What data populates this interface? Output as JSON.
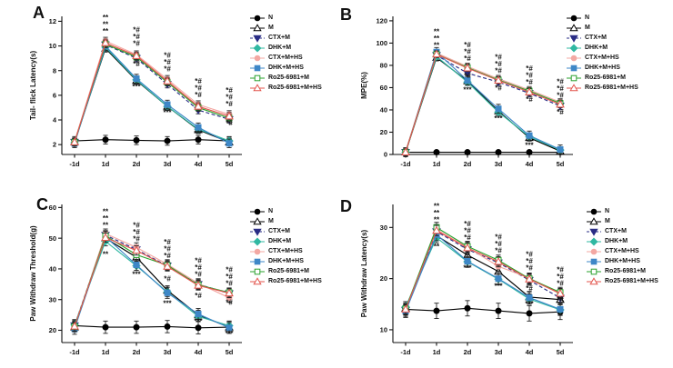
{
  "figure_background": "#ffffff",
  "legend": {
    "items": [
      {
        "label": "N",
        "marker": "circle",
        "color": "#000000",
        "open": false,
        "dash": "solid"
      },
      {
        "label": "M",
        "marker": "triangle-up",
        "color": "#000000",
        "open": true,
        "dash": "solid"
      },
      {
        "label": "CTX+M",
        "marker": "triangle-down",
        "color": "#2a2d85",
        "open": false,
        "dash": "dashed"
      },
      {
        "label": "DHK+M",
        "marker": "diamond",
        "color": "#30b8a2",
        "open": false,
        "dash": "solid"
      },
      {
        "label": "CTX+M+HS",
        "marker": "circle",
        "color": "#f3a8a3",
        "open": false,
        "dash": "solid"
      },
      {
        "label": "DHK+M+HS",
        "marker": "square",
        "color": "#3e87c7",
        "open": false,
        "dash": "solid"
      },
      {
        "label": "Ro25-6981+M",
        "marker": "square",
        "color": "#2aa12e",
        "open": true,
        "dash": "solid"
      },
      {
        "label": "Ro25-6981+M+HS",
        "marker": "triangle-up",
        "color": "#e3564e",
        "open": true,
        "dash": "solid"
      }
    ]
  },
  "chart_data": [
    {
      "label": "A",
      "type": "line",
      "ylabel": "Tail- flick Latency(s)",
      "x_labels": [
        "-1d",
        "1d",
        "2d",
        "3d",
        "4d",
        "5d"
      ],
      "ylim": [
        1.2,
        12.4
      ],
      "yticks": [
        2,
        4,
        6,
        8,
        10,
        12
      ],
      "series": [
        {
          "name": "N",
          "values": [
            2.3,
            2.4,
            2.35,
            2.3,
            2.4,
            2.3
          ],
          "err": 0.35
        },
        {
          "name": "M",
          "values": [
            2.2,
            9.8,
            7.2,
            5.1,
            3.2,
            2.2
          ],
          "err": 0.3
        },
        {
          "name": "CTX+M",
          "values": [
            2.2,
            10.1,
            9.0,
            6.9,
            4.8,
            4.05
          ],
          "err": 0.3
        },
        {
          "name": "DHK+M",
          "values": [
            2.15,
            9.9,
            7.25,
            5.1,
            3.25,
            2.3
          ],
          "err": 0.3
        },
        {
          "name": "CTX+M+HS",
          "values": [
            2.25,
            10.4,
            9.3,
            7.3,
            5.25,
            4.45
          ],
          "err": 0.3
        },
        {
          "name": "DHK+M+HS",
          "values": [
            2.1,
            10.0,
            7.35,
            5.25,
            3.4,
            2.1
          ],
          "err": 0.35
        },
        {
          "name": "Ro25-6981+M",
          "values": [
            2.2,
            10.15,
            9.1,
            7.05,
            5.0,
            4.15
          ],
          "err": 0.3
        },
        {
          "name": "Ro25-6981+M+HS",
          "values": [
            2.2,
            10.25,
            9.2,
            7.15,
            5.1,
            4.3
          ],
          "err": 0.3
        }
      ],
      "annotations": [
        {
          "xi": 1,
          "y": 11.0,
          "lines": [
            "**",
            "**",
            "**"
          ]
        },
        {
          "xi": 2,
          "y": 10.0,
          "lines": [
            "*#",
            "*#",
            "*#"
          ]
        },
        {
          "xi": 2,
          "y": 8.35,
          "lines": [
            "*#"
          ]
        },
        {
          "xi": 2,
          "y": 6.5,
          "lines": [
            "***"
          ]
        },
        {
          "xi": 3,
          "y": 7.95,
          "lines": [
            "*#",
            "*#",
            "*#"
          ]
        },
        {
          "xi": 3,
          "y": 4.4,
          "lines": [
            "***"
          ]
        },
        {
          "xi": 4,
          "y": 5.85,
          "lines": [
            "*#",
            "*#",
            "*#"
          ]
        },
        {
          "xi": 4,
          "y": 2.7,
          "lines": [
            "***"
          ]
        },
        {
          "xi": 5,
          "y": 5.1,
          "lines": [
            "*#",
            "*#",
            "*#"
          ]
        },
        {
          "xi": 5,
          "y": 3.55,
          "lines": [
            "*#"
          ]
        }
      ]
    },
    {
      "label": "B",
      "type": "line",
      "ylabel": "MPE(%)",
      "x_labels": [
        "-1d",
        "1d",
        "2d",
        "3d",
        "4d",
        "5d"
      ],
      "ylim": [
        0,
        124
      ],
      "yticks": [
        0,
        20,
        40,
        60,
        80,
        100,
        120
      ],
      "series": [
        {
          "name": "N",
          "values": [
            2,
            2,
            2,
            2,
            2,
            2
          ],
          "err": 1.5
        },
        {
          "name": "M",
          "values": [
            2,
            87,
            66,
            39,
            15,
            3
          ],
          "err": 3
        },
        {
          "name": "CTX+M",
          "values": [
            2,
            89,
            73,
            65,
            55,
            43.5
          ],
          "err": 3
        },
        {
          "name": "DHK+M",
          "values": [
            2,
            88,
            65,
            38,
            16,
            4
          ],
          "err": 3
        },
        {
          "name": "CTX+M+HS",
          "values": [
            3,
            91,
            79,
            68,
            58,
            47
          ],
          "err": 3
        },
        {
          "name": "DHK+M+HS",
          "values": [
            2,
            92,
            66.5,
            41,
            17,
            4.5
          ],
          "err": 4
        },
        {
          "name": "Ro25-6981+M",
          "values": [
            2,
            90,
            78,
            67,
            57,
            46
          ],
          "err": 3
        },
        {
          "name": "Ro25-6981+M+HS",
          "values": [
            2,
            90,
            77.5,
            66.5,
            56,
            45
          ],
          "err": 3
        }
      ],
      "annotations": [
        {
          "xi": 1,
          "y": 96,
          "lines": [
            "**",
            "**",
            "**"
          ]
        },
        {
          "xi": 2,
          "y": 84,
          "lines": [
            "*#",
            "*#",
            "*#"
          ]
        },
        {
          "xi": 2,
          "y": 68.5,
          "lines": [
            "*#"
          ]
        },
        {
          "xi": 2,
          "y": 56,
          "lines": [
            "***"
          ]
        },
        {
          "xi": 3,
          "y": 73,
          "lines": [
            "*#",
            "*#",
            "*#"
          ]
        },
        {
          "xi": 3,
          "y": 57.5,
          "lines": [
            "*#"
          ]
        },
        {
          "xi": 3,
          "y": 30,
          "lines": [
            "***"
          ]
        },
        {
          "xi": 4,
          "y": 63,
          "lines": [
            "*#",
            "*#",
            "*#"
          ]
        },
        {
          "xi": 4,
          "y": 47.5,
          "lines": [
            "*#"
          ]
        },
        {
          "xi": 4,
          "y": 6,
          "lines": [
            "***"
          ]
        },
        {
          "xi": 5,
          "y": 51,
          "lines": [
            "*#",
            "*#",
            "*#"
          ]
        },
        {
          "xi": 5,
          "y": 36,
          "lines": [
            "*#"
          ]
        }
      ]
    },
    {
      "label": "C",
      "type": "line",
      "ylabel": "Paw Withdraw Threshold(g)",
      "x_labels": [
        "-1d",
        "1d",
        "2d",
        "3d",
        "4d",
        "5d"
      ],
      "ylim": [
        16,
        61
      ],
      "yticks": [
        20,
        30,
        40,
        50,
        60
      ],
      "series": [
        {
          "name": "N",
          "values": [
            21.5,
            21,
            21,
            21.2,
            20.8,
            21
          ],
          "err": 2
        },
        {
          "name": "M",
          "values": [
            21,
            50,
            43.8,
            33,
            25,
            21
          ],
          "err": 1.5
        },
        {
          "name": "CTX+M",
          "values": [
            21.5,
            51,
            46.3,
            41,
            35,
            32
          ],
          "err": 1.5
        },
        {
          "name": "DHK+M",
          "values": [
            21.8,
            49,
            41,
            32.5,
            24.5,
            21.5
          ],
          "err": 1.5
        },
        {
          "name": "CTX+M+HS",
          "values": [
            21,
            51.5,
            47,
            41.5,
            35.3,
            30.6
          ],
          "err": 1.5
        },
        {
          "name": "DHK+M+HS",
          "values": [
            20.5,
            50.5,
            41.3,
            32.2,
            25.3,
            20.8
          ],
          "err": 1.8
        },
        {
          "name": "Ro25-6981+M",
          "values": [
            21.2,
            50.8,
            44.6,
            41.2,
            34.8,
            32.3
          ],
          "err": 1.5
        },
        {
          "name": "Ro25-6981+M+HS",
          "values": [
            21.3,
            50.2,
            46,
            40.8,
            34.6,
            32.1
          ],
          "err": 1.5
        }
      ],
      "annotations": [
        {
          "xi": 1,
          "y": 53.5,
          "lines": [
            "**",
            "**",
            "**"
          ]
        },
        {
          "xi": 1,
          "y": 44,
          "lines": [
            "**"
          ]
        },
        {
          "xi": 2,
          "y": 49,
          "lines": [
            "*#",
            "*#",
            "*#"
          ]
        },
        {
          "xi": 2,
          "y": 37.5,
          "lines": [
            "***"
          ]
        },
        {
          "xi": 3,
          "y": 43.5,
          "lines": [
            "*#",
            "*#",
            "*#"
          ]
        },
        {
          "xi": 3,
          "y": 36,
          "lines": [
            "*#"
          ]
        },
        {
          "xi": 3,
          "y": 28,
          "lines": [
            "***"
          ]
        },
        {
          "xi": 4,
          "y": 37.5,
          "lines": [
            "*#",
            "*#",
            "*#"
          ]
        },
        {
          "xi": 4,
          "y": 30.5,
          "lines": [
            "*#"
          ]
        },
        {
          "xi": 4,
          "y": 22.2,
          "lines": [
            "***"
          ]
        },
        {
          "xi": 5,
          "y": 34.5,
          "lines": [
            "*#",
            "*#",
            "*#"
          ]
        },
        {
          "xi": 5,
          "y": 28.3,
          "lines": [
            "*#"
          ]
        },
        {
          "xi": 5,
          "y": 18.2,
          "lines": [
            "***"
          ]
        }
      ]
    },
    {
      "label": "D",
      "type": "line",
      "ylabel": "Paw Withdraw Latency(s)",
      "x_labels": [
        "-1d",
        "1d",
        "2d",
        "3d",
        "4d",
        "5d"
      ],
      "ylim": [
        7.5,
        34.5
      ],
      "yticks": [
        10,
        20,
        30
      ],
      "series": [
        {
          "name": "N",
          "values": [
            14,
            13.7,
            14.2,
            13.7,
            13.2,
            13.5
          ],
          "err": 1.5
        },
        {
          "name": "M",
          "values": [
            14.2,
            28.4,
            24.6,
            21.4,
            16.4,
            15.9
          ],
          "err": 1
        },
        {
          "name": "CTX+M",
          "values": [
            13.8,
            29.2,
            25.7,
            23.1,
            19.7,
            16.2
          ],
          "err": 1
        },
        {
          "name": "DHK+M",
          "values": [
            14.5,
            28.0,
            23.3,
            19.9,
            16.0,
            13.9
          ],
          "err": 1
        },
        {
          "name": "CTX+M+HS",
          "values": [
            13.9,
            29.6,
            26.1,
            22.4,
            20.1,
            17.0
          ],
          "err": 1
        },
        {
          "name": "DHK+M+HS",
          "values": [
            13.6,
            28.6,
            23.4,
            20.0,
            16.3,
            14.0
          ],
          "err": 1.2
        },
        {
          "name": "Ro25-6981+M",
          "values": [
            14.1,
            30.0,
            26.3,
            23.6,
            20.0,
            17.3
          ],
          "err": 1
        },
        {
          "name": "Ro25-6981+M+HS",
          "values": [
            14.0,
            29.4,
            26.0,
            23.3,
            19.9,
            17.1
          ],
          "err": 1
        }
      ],
      "annotations": [
        {
          "xi": 1,
          "y": 31,
          "lines": [
            "**",
            "**",
            "**"
          ]
        },
        {
          "xi": 1,
          "y": 25.8,
          "lines": [
            "**"
          ]
        },
        {
          "xi": 2,
          "y": 27.6,
          "lines": [
            "*#",
            "*#",
            "*#"
          ]
        },
        {
          "xi": 2,
          "y": 21.6,
          "lines": [
            "***"
          ]
        },
        {
          "xi": 3,
          "y": 25,
          "lines": [
            "*#",
            "*#",
            "*#"
          ]
        },
        {
          "xi": 3,
          "y": 18.1,
          "lines": [
            "***"
          ]
        },
        {
          "xi": 4,
          "y": 21.6,
          "lines": [
            "*#",
            "*#",
            "*#"
          ]
        },
        {
          "xi": 4,
          "y": 17.6,
          "lines": [
            "*#"
          ]
        },
        {
          "xi": 4,
          "y": 14.6,
          "lines": [
            "***"
          ]
        },
        {
          "xi": 5,
          "y": 18.6,
          "lines": [
            "*#",
            "*#",
            "*#"
          ]
        },
        {
          "xi": 5,
          "y": 15.5,
          "lines": [
            "*#"
          ]
        }
      ]
    }
  ]
}
